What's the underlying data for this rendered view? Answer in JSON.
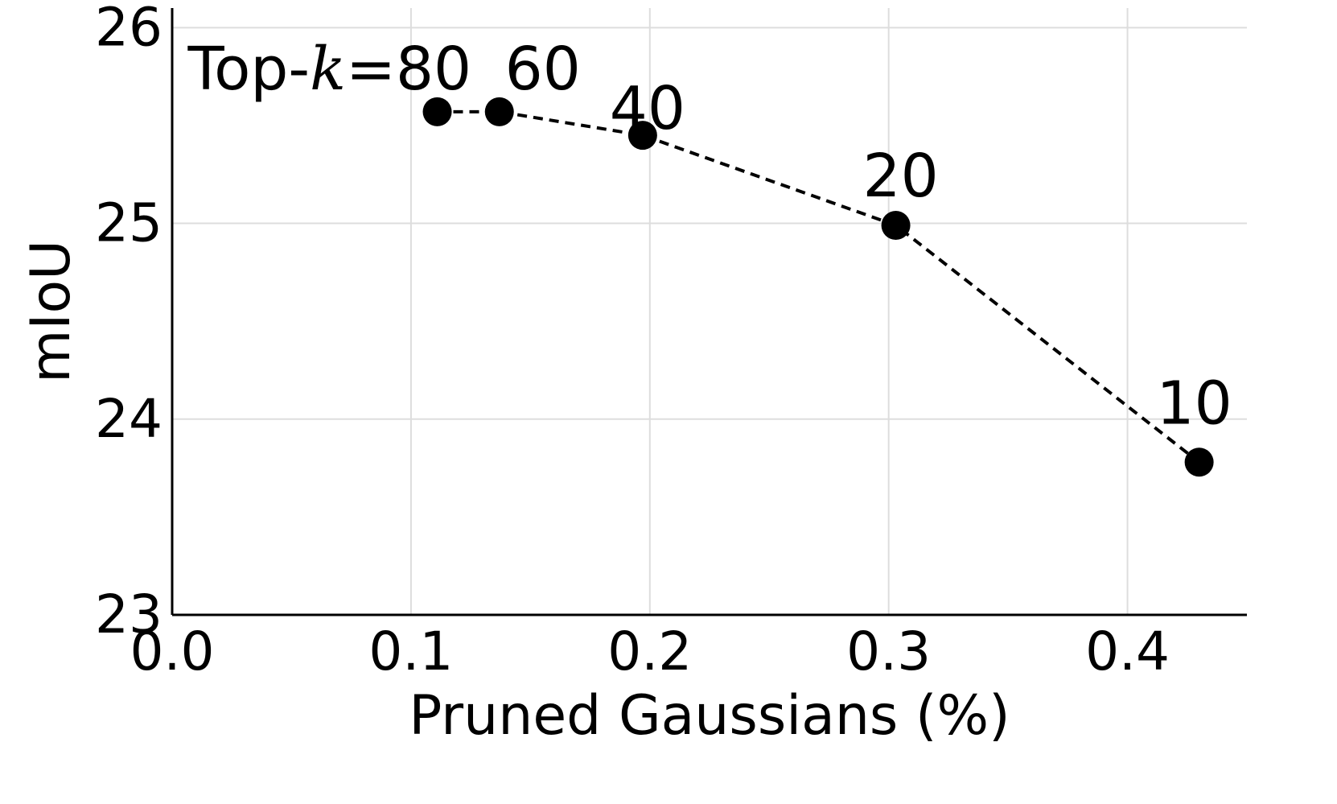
{
  "chart_data": {
    "type": "line",
    "xlabel": "Pruned Gaussians (%)",
    "ylabel": "mIoU",
    "xlim": [
      0.0,
      0.45
    ],
    "ylim": [
      23,
      26.1
    ],
    "x_ticks": [
      "0.0",
      "0.1",
      "0.2",
      "0.3",
      "0.4"
    ],
    "y_ticks": [
      "23",
      "24",
      "25",
      "26"
    ],
    "grid": true,
    "series": [
      {
        "line_style": "dashed",
        "color": "#000000",
        "points": [
          {
            "x": 0.111,
            "y": 25.57,
            "label": "80"
          },
          {
            "x": 0.137,
            "y": 25.57,
            "label": "60"
          },
          {
            "x": 0.197,
            "y": 25.45,
            "label": "40"
          },
          {
            "x": 0.303,
            "y": 24.99,
            "label": "20"
          },
          {
            "x": 0.43,
            "y": 23.78,
            "label": "10"
          }
        ]
      }
    ],
    "annotation_prefix": "Top-",
    "annotation_var": "k",
    "annotation_eq": "="
  }
}
